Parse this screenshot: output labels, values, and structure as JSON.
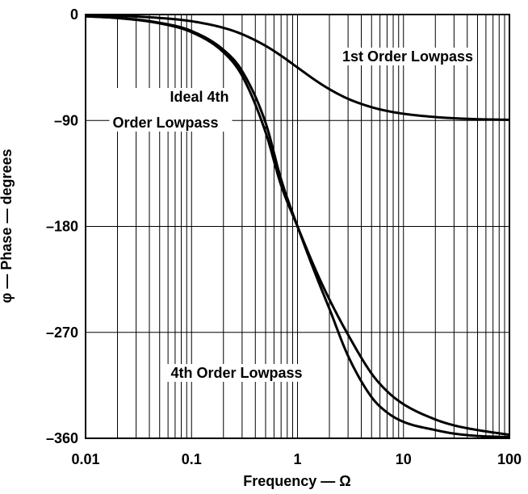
{
  "chart_data": {
    "type": "line",
    "title": "",
    "xlabel": "Frequency — Ω",
    "ylabel": "φ — Phase — degrees",
    "x_scale": "log",
    "xlim": [
      0.01,
      100
    ],
    "ylim": [
      -360,
      0
    ],
    "grid": true,
    "x_ticks": [
      {
        "value": 0.01,
        "label": "0.01"
      },
      {
        "value": 0.1,
        "label": "0.1"
      },
      {
        "value": 1,
        "label": "1"
      },
      {
        "value": 10,
        "label": "10"
      },
      {
        "value": 100,
        "label": "100"
      }
    ],
    "y_ticks": [
      {
        "value": 0,
        "label": "0"
      },
      {
        "value": -90,
        "label": "–90"
      },
      {
        "value": -180,
        "label": "–180"
      },
      {
        "value": -270,
        "label": "–270"
      },
      {
        "value": -360,
        "label": "–360"
      }
    ],
    "series": [
      {
        "name": "1st Order Lowpass",
        "x": [
          0.01,
          0.02,
          0.05,
          0.1,
          0.2,
          0.3,
          0.5,
          0.7,
          1,
          1.5,
          2,
          3,
          5,
          7,
          10,
          20,
          30,
          50,
          100
        ],
        "y": [
          -0.6,
          -1.1,
          -2.9,
          -5.7,
          -11.3,
          -16.7,
          -26.6,
          -35.0,
          -45.0,
          -56.3,
          -63.4,
          -71.6,
          -78.7,
          -81.9,
          -84.3,
          -87.1,
          -88.1,
          -88.9,
          -89.4
        ]
      },
      {
        "name": "Ideal 4th Order Lowpass",
        "x": [
          0.01,
          0.02,
          0.05,
          0.1,
          0.2,
          0.3,
          0.5,
          0.7,
          1,
          1.5,
          2,
          3,
          5,
          7,
          10,
          20,
          30,
          50,
          100
        ],
        "y": [
          -1.5,
          -2.8,
          -7,
          -14,
          -30,
          -48,
          -92,
          -140,
          -180,
          -222,
          -250,
          -290,
          -325,
          -338,
          -346,
          -353,
          -356,
          -358,
          -359
        ]
      },
      {
        "name": "4th Order Lowpass",
        "x": [
          0.01,
          0.02,
          0.05,
          0.1,
          0.2,
          0.3,
          0.5,
          0.7,
          1,
          1.5,
          2,
          3,
          5,
          7,
          10,
          20,
          30,
          50,
          100
        ],
        "y": [
          -1.5,
          -3,
          -7.5,
          -15,
          -32,
          -52,
          -100,
          -145,
          -180,
          -218,
          -242,
          -272,
          -305,
          -320,
          -331,
          -344,
          -349,
          -353,
          -357
        ]
      }
    ],
    "annotations": [
      {
        "text": "1st Order Lowpass",
        "series": "1st Order Lowpass"
      },
      {
        "text": "Ideal 4th",
        "series": "Ideal 4th Order Lowpass"
      },
      {
        "text": "Order Lowpass",
        "series": "Ideal 4th Order Lowpass"
      },
      {
        "text": "4th Order Lowpass",
        "series": "4th Order Lowpass"
      }
    ]
  }
}
